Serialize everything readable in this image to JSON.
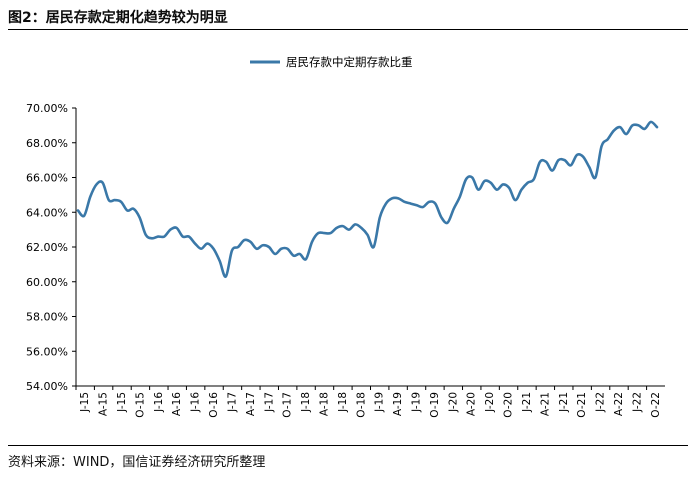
{
  "figure_title": "图2：居民存款定期化趋势较为明显",
  "source_note": "资料来源：WIND，国信证券经济研究所整理",
  "colors": {
    "series": "#3a78a8",
    "axis": "#000000"
  },
  "chart_data": {
    "type": "line",
    "title": "",
    "xlabel": "",
    "ylabel": "",
    "ylim": [
      54,
      70
    ],
    "y_ticks": [
      54,
      56,
      58,
      60,
      62,
      64,
      66,
      68,
      70
    ],
    "y_tick_labels": [
      "54.00%",
      "56.00%",
      "58.00%",
      "60.00%",
      "62.00%",
      "64.00%",
      "66.00%",
      "68.00%",
      "70.00%"
    ],
    "legend": "top-center",
    "x_tick_labels": [
      "J-15",
      "A-15",
      "J-15",
      "O-15",
      "J-16",
      "A-16",
      "J-16",
      "O-16",
      "J-17",
      "A-17",
      "J-17",
      "O-17",
      "J-18",
      "A-18",
      "J-18",
      "O-18",
      "J-19",
      "A-19",
      "J-19",
      "O-19",
      "J-20",
      "A-20",
      "J-20",
      "O-20",
      "J-21",
      "A-21",
      "J-21",
      "O-21",
      "J-22",
      "A-22",
      "J-22",
      "O-22"
    ],
    "series": [
      {
        "name": "居民存款中定期存款比重",
        "values": [
          64.1,
          63.8,
          64.9,
          65.6,
          65.7,
          64.7,
          64.7,
          64.6,
          64.1,
          64.2,
          63.7,
          62.7,
          62.5,
          62.6,
          62.6,
          63.0,
          63.1,
          62.6,
          62.6,
          62.2,
          61.9,
          62.2,
          61.9,
          61.2,
          60.3,
          61.8,
          62.0,
          62.4,
          62.3,
          61.9,
          62.1,
          62.0,
          61.6,
          61.9,
          61.9,
          61.5,
          61.6,
          61.3,
          62.3,
          62.8,
          62.8,
          62.8,
          63.1,
          63.2,
          63.0,
          63.3,
          63.1,
          62.7,
          62.0,
          63.7,
          64.5,
          64.8,
          64.8,
          64.6,
          64.5,
          64.4,
          64.3,
          64.6,
          64.5,
          63.7,
          63.4,
          64.2,
          64.9,
          65.9,
          66.0,
          65.3,
          65.8,
          65.7,
          65.3,
          65.6,
          65.4,
          64.7,
          65.3,
          65.7,
          65.9,
          66.9,
          66.9,
          66.4,
          67.0,
          67.0,
          66.7,
          67.3,
          67.2,
          66.6,
          66.0,
          67.8,
          68.2,
          68.7,
          68.9,
          68.5,
          69.0,
          69.0,
          68.8,
          69.2,
          68.9
        ]
      }
    ]
  }
}
